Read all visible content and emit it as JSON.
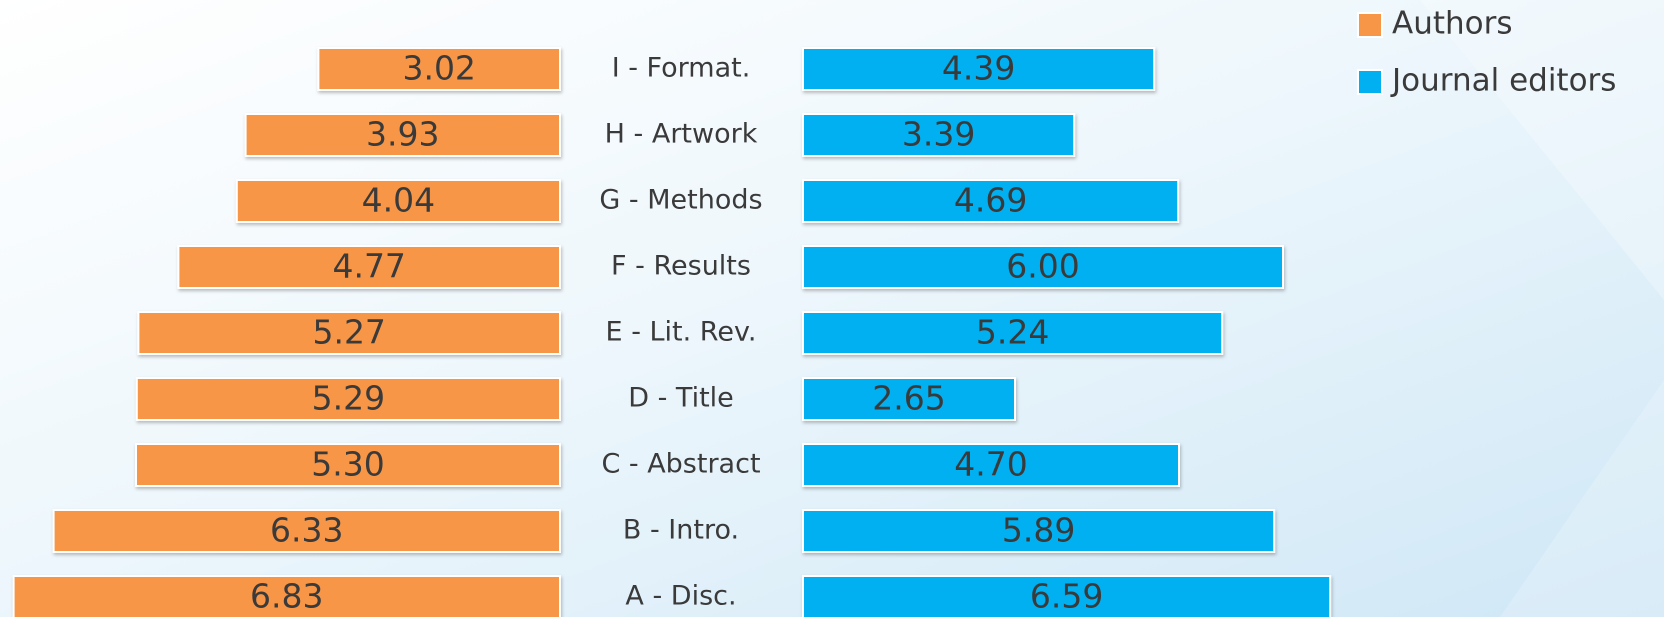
{
  "chart_data": {
    "type": "butterfly-bar",
    "categories": [
      "I - Format.",
      "H - Artwork",
      "G - Methods",
      "F - Results",
      "E - Lit. Rev.",
      "D - Title",
      "C - Abstract",
      "B - Intro.",
      "A - Disc."
    ],
    "series": [
      {
        "name": "Authors",
        "color": "#f79646",
        "values": [
          3.02,
          3.93,
          4.04,
          4.77,
          5.27,
          5.29,
          5.3,
          6.33,
          6.83
        ],
        "value_labels": [
          "3.02",
          "3.93",
          "4.04",
          "4.77",
          "5.27",
          "5.29",
          "5.30",
          "6.33",
          "6.83"
        ]
      },
      {
        "name": "Journal editors",
        "color": "#00b0f0",
        "values": [
          4.39,
          3.39,
          4.69,
          6.0,
          5.24,
          2.65,
          4.7,
          5.89,
          6.59
        ],
        "value_labels": [
          "4.39",
          "3.39",
          "4.69",
          "6.00",
          "5.24",
          "2.65",
          "4.70",
          "5.89",
          "6.59"
        ]
      }
    ],
    "legend": "top-right"
  }
}
